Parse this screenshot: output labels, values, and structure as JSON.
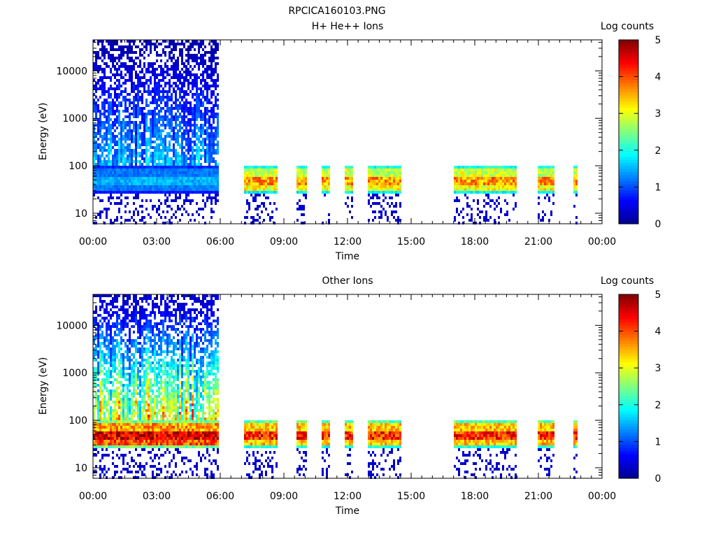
{
  "figure_title": "RPCICA160103.PNG",
  "colors": {
    "jet": [
      "#00008f",
      "#0000ff",
      "#0080ff",
      "#00ffff",
      "#80ff80",
      "#ffff00",
      "#ff8000",
      "#ff0000",
      "#800000"
    ]
  },
  "chart_data": [
    {
      "type": "heatmap",
      "title": "H+ He++ Ions",
      "xlabel": "Time",
      "ylabel": "Energy (eV)",
      "x_ticks": [
        "00:00",
        "03:00",
        "06:00",
        "09:00",
        "12:00",
        "15:00",
        "18:00",
        "21:00",
        "00:00"
      ],
      "xlim_hours": [
        0,
        24
      ],
      "y_ticks": [
        "10",
        "100",
        "1000",
        "10000"
      ],
      "ylim": [
        6,
        45000
      ],
      "y_scale": "log",
      "colorbar": {
        "label": "Log counts",
        "ticks": [
          "0",
          "1",
          "2",
          "3",
          "4",
          "5"
        ],
        "range": [
          0,
          5
        ]
      },
      "data_intervals_hours": [
        [
          0,
          5.93
        ],
        [
          7.05,
          8.7
        ],
        [
          9.5,
          10.0
        ],
        [
          10.7,
          11.1
        ],
        [
          11.85,
          12.25
        ],
        [
          12.95,
          14.5
        ],
        [
          17.0,
          19.9
        ],
        [
          20.95,
          21.75
        ],
        [
          22.6,
          22.8
        ]
      ],
      "bands": [
        {
          "range": [
            0,
            5.93
          ],
          "high_peak": 1.5,
          "low_peak": 1.2,
          "diffuse": 0.5
        },
        {
          "range": [
            7.05,
            24
          ],
          "high_peak": 3.6,
          "low_peak": 3.1,
          "diffuse": 0
        }
      ]
    },
    {
      "type": "heatmap",
      "title": "Other Ions",
      "xlabel": "Time",
      "ylabel": "Energy (eV)",
      "x_ticks": [
        "00:00",
        "03:00",
        "06:00",
        "09:00",
        "12:00",
        "15:00",
        "18:00",
        "21:00",
        "00:00"
      ],
      "xlim_hours": [
        0,
        24
      ],
      "y_ticks": [
        "10",
        "100",
        "1000",
        "10000"
      ],
      "ylim": [
        6,
        45000
      ],
      "y_scale": "log",
      "colorbar": {
        "label": "Log counts",
        "ticks": [
          "0",
          "1",
          "2",
          "3",
          "4",
          "5"
        ],
        "range": [
          0,
          5
        ]
      },
      "data_intervals_hours": [
        [
          0,
          5.93
        ],
        [
          7.05,
          8.7
        ],
        [
          9.5,
          10.0
        ],
        [
          10.7,
          11.1
        ],
        [
          11.85,
          12.25
        ],
        [
          12.95,
          14.5
        ],
        [
          17.0,
          19.9
        ],
        [
          20.95,
          21.75
        ],
        [
          22.6,
          22.8
        ]
      ],
      "bands": [
        {
          "range": [
            0,
            5.93
          ],
          "high_peak": 4.5,
          "low_peak": 4.0,
          "diffuse": 1.0
        },
        {
          "range": [
            7.05,
            24
          ],
          "high_peak": 4.2,
          "low_peak": 3.4,
          "diffuse": 0
        }
      ]
    }
  ]
}
